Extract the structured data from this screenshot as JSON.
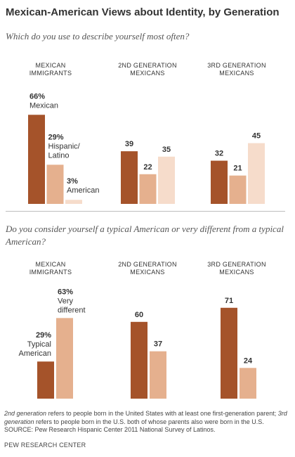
{
  "title": "Mexican-American Views about Identity, by Generation",
  "colors": {
    "dark": "#a5532a",
    "mid": "#e5b08e",
    "light": "#f6dccb"
  },
  "chart_data": [
    {
      "type": "bar",
      "question": "Which do you use to describe yourself most often?",
      "groups": [
        {
          "label_line1": "MEXICAN",
          "label_line2": "IMMIGRANTS"
        },
        {
          "label_line1": "2ND GENERATION",
          "label_line2": "MEXICANS"
        },
        {
          "label_line1": "3RD GENERATION",
          "label_line2": "MEXICANS"
        }
      ],
      "series": [
        {
          "name": "Mexican",
          "color": "dark",
          "values": [
            66,
            39,
            32
          ],
          "first_label": "66%",
          "first_name": "Mexican"
        },
        {
          "name": "Hispanic/Latino",
          "color": "mid",
          "values": [
            29,
            22,
            21
          ],
          "first_label": "29%",
          "first_name_line1": "Hispanic/",
          "first_name_line2": "Latino"
        },
        {
          "name": "American",
          "color": "light",
          "values": [
            3,
            35,
            45
          ],
          "first_label": "3%",
          "first_name": "American"
        }
      ],
      "ylim": [
        0,
        100
      ]
    },
    {
      "type": "bar",
      "question": "Do you consider yourself a typical American or very different from a typical American?",
      "groups": [
        {
          "label_line1": "MEXICAN",
          "label_line2": "IMMIGRANTS"
        },
        {
          "label_line1": "2ND GENERATION",
          "label_line2": "MEXICANS"
        },
        {
          "label_line1": "3RD GENERATION",
          "label_line2": "MEXICANS"
        }
      ],
      "series": [
        {
          "name": "Typical American",
          "color": "dark",
          "values": [
            29,
            60,
            71
          ],
          "first_label": "29%",
          "first_name_line1": "Typical",
          "first_name_line2": "American"
        },
        {
          "name": "Very different",
          "color": "mid",
          "values": [
            63,
            37,
            24
          ],
          "first_label": "63%",
          "first_name_line1": "Very",
          "first_name_line2": "different"
        }
      ],
      "ylim": [
        0,
        100
      ]
    }
  ],
  "footnote": {
    "part1_italic": "2nd generation",
    "part2": " refers to people born in the United States with at least one first-generation parent; ",
    "part3_italic": "3rd generation",
    "part4": " refers to people born in the U.S. both of whose parents also were born in the U.S. SOURCE: Pew Research Hispanic Center 2011 National Survey of Latinos."
  },
  "source": "PEW RESEARCH CENTER"
}
